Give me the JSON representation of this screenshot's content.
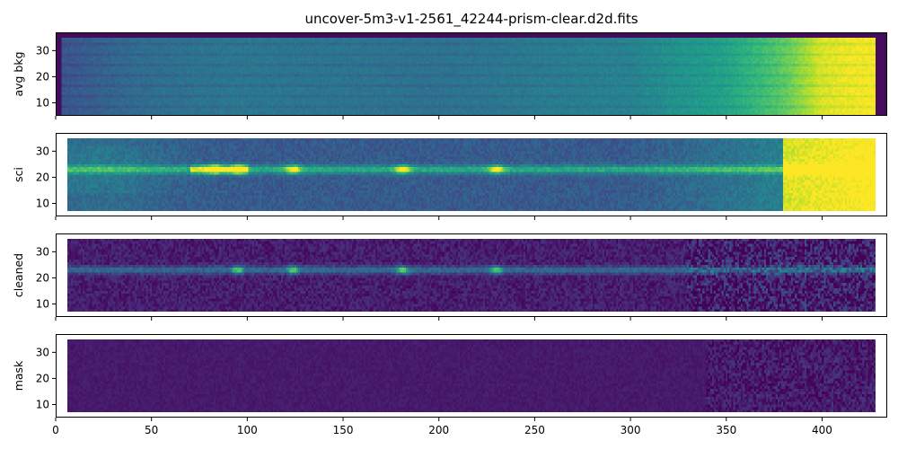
{
  "chart_data": {
    "type": "heatmap",
    "title": "uncover-5m3-v1-2561_42244-prism-clear.d2d.fits",
    "colormap": "viridis",
    "xlim": [
      0,
      434
    ],
    "ylim": [
      5,
      37
    ],
    "x_ticks": [
      0,
      50,
      100,
      150,
      200,
      250,
      300,
      350,
      400
    ],
    "y_ticks": [
      10,
      20,
      30
    ],
    "shared_x_axis": true,
    "panels": [
      {
        "ylabel": "avg bkg",
        "description_values": {
          "data_x_range": [
            3,
            428
          ],
          "data_y_range": [
            5,
            35
          ],
          "trend_x": [
            [
              0,
              0.26
            ],
            [
              40,
              0.35
            ],
            [
              90,
              0.4
            ],
            [
              200,
              0.38
            ],
            [
              300,
              0.45
            ],
            [
              350,
              0.58
            ],
            [
              380,
              0.75
            ],
            [
              400,
              0.95
            ],
            [
              428,
              1.0
            ]
          ]
        }
      },
      {
        "ylabel": "sci",
        "description_values": {
          "data_x_range": [
            6,
            428
          ],
          "data_y_range": [
            7,
            35
          ],
          "trace_center_y": 23,
          "emission_lines_x": [
            83,
            95,
            124,
            181,
            230
          ]
        }
      },
      {
        "ylabel": "cleaned",
        "description_values": {
          "data_x_range": [
            6,
            428
          ],
          "data_y_range": [
            7,
            35
          ],
          "trace_center_y": 23,
          "emission_lines_x": [
            95,
            124,
            181,
            230
          ]
        }
      },
      {
        "ylabel": "mask",
        "description_values": {
          "data_x_range": [
            6,
            428
          ],
          "data_y_range": [
            7,
            35
          ]
        }
      }
    ]
  }
}
